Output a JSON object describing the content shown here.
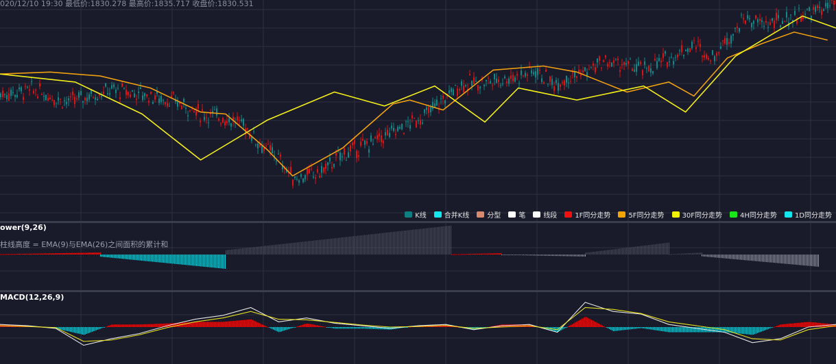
{
  "header": {
    "text": "020/12/10 19:30 最低价:1830.278 最高价:1835.717 收盘价:1830.531"
  },
  "panels": {
    "power": {
      "title": "ower(9,26)",
      "desc": "柱线高度 = EMA(9)与EMA(26)之间面积的累计和"
    },
    "macd": {
      "title": "MACD(12,26,9)"
    }
  },
  "colors": {
    "background": "#191a2a",
    "grid": "#2e3142",
    "up": "#e01313",
    "down": "#0e8a8a",
    "zz_bi": "#f0a010",
    "zz_seg": "#f2ee1a",
    "power_pos": "#e01010",
    "power_neg": "#16d3e0",
    "macd_dif": "#e8e8e8",
    "macd_dea": "#e7e021"
  },
  "legend": [
    {
      "label": "K线",
      "color": "#0e7e80"
    },
    {
      "label": "合并K线",
      "color": "#13e6ec"
    },
    {
      "label": "分型",
      "color": "#d98a6e"
    },
    {
      "label": "笔",
      "color": "#ffffff"
    },
    {
      "label": "线段",
      "color": "#ffffff"
    },
    {
      "label": "1F同分走势",
      "color": "#f01010"
    },
    {
      "label": "5F同分走势",
      "color": "#f5a500"
    },
    {
      "label": "30F同分走势",
      "color": "#f2f200"
    },
    {
      "label": "4H同分走势",
      "color": "#18e818"
    },
    {
      "label": "1D同分走势",
      "color": "#13e6ec"
    }
  ],
  "chart_data": [
    {
      "type": "candlestick",
      "name": "price",
      "x_range": [
        0,
        100
      ],
      "y_range": [
        0,
        100
      ],
      "price_path": [
        [
          0,
          55
        ],
        [
          4,
          57
        ],
        [
          8,
          51
        ],
        [
          13,
          57
        ],
        [
          17,
          55
        ],
        [
          21,
          51
        ],
        [
          24,
          45
        ],
        [
          26,
          44
        ],
        [
          29,
          40
        ],
        [
          31,
          30
        ],
        [
          32,
          27
        ],
        [
          33,
          24
        ],
        [
          35,
          13
        ],
        [
          38,
          15
        ],
        [
          41,
          25
        ],
        [
          44,
          30
        ],
        [
          48,
          38
        ],
        [
          51,
          45
        ],
        [
          55,
          60
        ],
        [
          58,
          61
        ],
        [
          62,
          64
        ],
        [
          64,
          67
        ],
        [
          66,
          60
        ],
        [
          68,
          64
        ],
        [
          70,
          66
        ],
        [
          72,
          71
        ],
        [
          74,
          70
        ],
        [
          77,
          67
        ],
        [
          80,
          73
        ],
        [
          83,
          80
        ],
        [
          85,
          73
        ],
        [
          88,
          88
        ],
        [
          89,
          93
        ],
        [
          91,
          90
        ],
        [
          93,
          91
        ],
        [
          95,
          94
        ],
        [
          97,
          96
        ],
        [
          100,
          100
        ]
      ],
      "zigzag_5f": [
        [
          0,
          65
        ],
        [
          6,
          66
        ],
        [
          12,
          64
        ],
        [
          18,
          58
        ],
        [
          24,
          46
        ],
        [
          27,
          45
        ],
        [
          32,
          27
        ],
        [
          35,
          14
        ],
        [
          41,
          28
        ],
        [
          47,
          50
        ],
        [
          49,
          52
        ],
        [
          53,
          47
        ],
        [
          59,
          67
        ],
        [
          65,
          69
        ],
        [
          69,
          66
        ],
        [
          75,
          56
        ],
        [
          80,
          61
        ],
        [
          83,
          54
        ],
        [
          87,
          73
        ],
        [
          91,
          80
        ],
        [
          95,
          86
        ],
        [
          99,
          82
        ]
      ],
      "zigzag_30f": [
        [
          0,
          65
        ],
        [
          9,
          61
        ],
        [
          17,
          45
        ],
        [
          24,
          22
        ],
        [
          32,
          42
        ],
        [
          40,
          56
        ],
        [
          46,
          49
        ],
        [
          52,
          59
        ],
        [
          58,
          41
        ],
        [
          62,
          58
        ],
        [
          69,
          52
        ],
        [
          77,
          59
        ],
        [
          82,
          46
        ],
        [
          88,
          74
        ],
        [
          96,
          94
        ],
        [
          100,
          88
        ]
      ]
    },
    {
      "type": "bar",
      "name": "power",
      "regions": [
        {
          "from": 0,
          "to": 12,
          "peak": 0.06
        },
        {
          "from": 12,
          "to": 27,
          "peak": -0.42
        },
        {
          "from": 27,
          "to": 54,
          "peak": 0.85
        },
        {
          "from": 54,
          "to": 60,
          "peak": 0.04
        },
        {
          "from": 60,
          "to": 70,
          "peak": -0.06
        },
        {
          "from": 70,
          "to": 80,
          "peak": 0.35
        },
        {
          "from": 80,
          "to": 84,
          "peak": 0.06
        },
        {
          "from": 84,
          "to": 98,
          "peak": -0.36
        }
      ]
    },
    {
      "type": "line",
      "name": "macd",
      "series": [
        {
          "name": "DIF",
          "values": [
            0.1,
            0.05,
            -0.05,
            -0.7,
            -0.45,
            -0.25,
            0.05,
            0.3,
            0.45,
            0.75,
            0.2,
            0.35,
            0.15,
            0.05,
            -0.05,
            0.05,
            0.1,
            -0.1,
            0.05,
            0.1,
            -0.2,
            0.95,
            0.6,
            0.5,
            0.1,
            -0.05,
            -0.2,
            -0.6,
            -0.45,
            0.0,
            0.1
          ]
        },
        {
          "name": "DEA",
          "values": [
            0.05,
            0.02,
            -0.02,
            -0.55,
            -0.5,
            -0.3,
            -0.02,
            0.2,
            0.35,
            0.6,
            0.3,
            0.28,
            0.18,
            0.08,
            0.0,
            0.02,
            0.06,
            -0.05,
            0.0,
            0.05,
            -0.1,
            0.75,
            0.68,
            0.52,
            0.2,
            0.05,
            -0.1,
            -0.45,
            -0.5,
            -0.1,
            0.05
          ]
        }
      ]
    }
  ]
}
